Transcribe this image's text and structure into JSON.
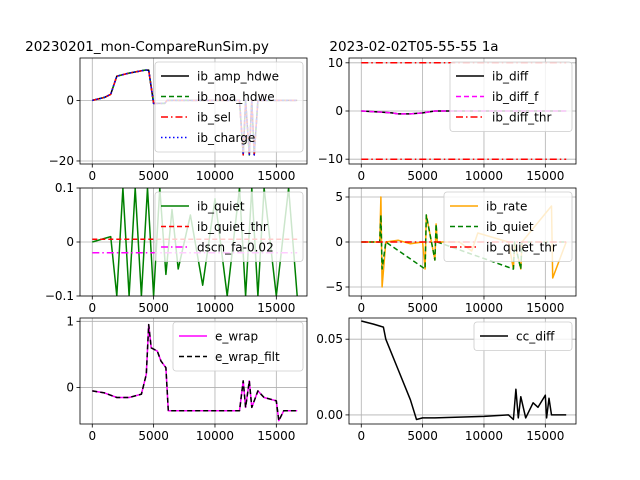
{
  "titles": {
    "left": "20230201_mon-CompareRunSim.py",
    "right": "2023-02-02T05-55-55 1a"
  },
  "chart_data": [
    {
      "type": "line",
      "panel": "top-left",
      "xlim": [
        -1000,
        17500
      ],
      "ylim": [
        -21,
        14
      ],
      "xticks": [
        0,
        5000,
        10000,
        15000
      ],
      "yticks": [
        -20,
        0
      ],
      "grid": true,
      "legend_placement": "upper-right",
      "series": [
        {
          "name": "ib_amp_hdwe",
          "color": "#000000",
          "style": "solid",
          "x": [
            0,
            1000,
            1500,
            2000,
            3000,
            4300,
            4600,
            5000,
            5900,
            6100,
            6200,
            7000,
            9000,
            11000,
            12000,
            12300,
            12500,
            12800,
            13000,
            13200,
            13500,
            15000,
            16700
          ],
          "y": [
            0,
            1,
            2,
            8,
            9,
            10,
            10,
            -1,
            -1,
            0,
            0,
            0,
            0,
            0,
            0,
            -18,
            0,
            -18,
            0,
            -18,
            0,
            0,
            0
          ]
        },
        {
          "name": "ib_noa_hdwe",
          "color": "#008000",
          "style": "dashed",
          "x": [
            0,
            1000,
            1500,
            2000,
            3000,
            4300,
            4600,
            5000,
            5900,
            6100,
            6200,
            7000,
            9000,
            11000,
            12000,
            12300,
            12500,
            12800,
            13000,
            13200,
            13500,
            15000,
            16700
          ],
          "y": [
            0,
            1,
            2,
            8,
            9,
            10,
            10,
            -1,
            -1,
            0,
            0,
            0,
            0,
            0,
            0,
            -18,
            0,
            -18,
            0,
            -18,
            0,
            0,
            0
          ]
        },
        {
          "name": "ib_sel",
          "color": "#ff0000",
          "style": "dashdot",
          "x": [
            0,
            1000,
            1500,
            2000,
            3000,
            4300,
            4600,
            5000,
            5900,
            6100,
            6200,
            7000,
            9000,
            11000,
            12000,
            12300,
            12500,
            12800,
            13000,
            13200,
            13500,
            15000,
            16700
          ],
          "y": [
            0,
            1,
            2,
            8,
            9,
            10,
            10,
            -1,
            -1,
            0,
            0,
            0,
            0,
            0,
            0,
            -18,
            0,
            -18,
            0,
            -18,
            0,
            0,
            0
          ]
        },
        {
          "name": "ib_charge",
          "color": "#0000ff",
          "style": "dotted",
          "x": [
            0,
            1000,
            1500,
            2000,
            3000,
            4300,
            4600,
            5000,
            5900,
            6100,
            6200,
            7000,
            9000,
            11000,
            12000,
            12300,
            12500,
            12800,
            13000,
            13200,
            13500,
            15000,
            16700
          ],
          "y": [
            0,
            1,
            2,
            8,
            9,
            10,
            10,
            -1,
            -1,
            0,
            0,
            0,
            0,
            0,
            0,
            -18,
            0,
            -18,
            0,
            -18,
            0,
            0,
            0
          ]
        }
      ]
    },
    {
      "type": "line",
      "panel": "top-right",
      "xlim": [
        -1000,
        17500
      ],
      "ylim": [
        -11,
        11
      ],
      "xticks": [
        0,
        5000,
        10000,
        15000
      ],
      "yticks": [
        -10,
        0,
        10
      ],
      "grid": true,
      "legend_placement": "upper-right",
      "series": [
        {
          "name": "ib_diff",
          "color": "#000000",
          "style": "solid",
          "x": [
            0,
            1500,
            2500,
            3000,
            4000,
            5000,
            6000,
            8000,
            12000,
            16700
          ],
          "y": [
            0,
            -0.2,
            -0.4,
            -0.6,
            -0.6,
            -0.4,
            0,
            0,
            0,
            0
          ]
        },
        {
          "name": "ib_diff_f",
          "color": "#ff00ff",
          "style": "dashed",
          "x": [
            0,
            1500,
            2500,
            3000,
            4000,
            5000,
            6000,
            8000,
            12000,
            16700
          ],
          "y": [
            0,
            -0.2,
            -0.4,
            -0.6,
            -0.6,
            -0.4,
            0,
            0,
            0,
            0
          ]
        },
        {
          "name": "ib_diff_thr",
          "color": "#ff0000",
          "style": "dashdot",
          "x": [
            0,
            16700
          ],
          "y": [
            10,
            10
          ]
        },
        {
          "name": "",
          "color": "#ff0000",
          "style": "dashdot",
          "x": [
            0,
            16700
          ],
          "y": [
            -10,
            -10
          ]
        }
      ]
    },
    {
      "type": "line",
      "panel": "middle-left",
      "xlim": [
        -1000,
        17500
      ],
      "ylim": [
        -0.1,
        0.1
      ],
      "xticks": [
        0,
        5000,
        10000,
        15000
      ],
      "yticks": [
        -0.1,
        0.0,
        0.1
      ],
      "grid": true,
      "legend_placement": "upper-right",
      "series": [
        {
          "name": "ib_quiet",
          "color": "#008000",
          "style": "solid",
          "x": [
            0,
            1500,
            2000,
            2500,
            3000,
            3500,
            4000,
            4500,
            5000,
            5500,
            6000,
            6500,
            7000,
            8000,
            9000,
            10000,
            11000,
            12000,
            12500,
            13000,
            13500,
            14000,
            15000,
            16000,
            16700
          ],
          "y": [
            0,
            0.01,
            -0.1,
            0.1,
            -0.1,
            0.1,
            -0.1,
            0.1,
            -0.1,
            0.1,
            -0.06,
            0.06,
            -0.05,
            0.05,
            -0.08,
            0.08,
            -0.1,
            0.1,
            -0.1,
            0.1,
            -0.1,
            0.1,
            -0.1,
            0.1,
            -0.1
          ]
        },
        {
          "name": "ib_quiet_thr",
          "color": "#ff0000",
          "style": "dashed",
          "x": [
            0,
            16700
          ],
          "y": [
            0.005,
            0.005
          ]
        },
        {
          "name": "dscn_fa-0.02",
          "color": "#ff00ff",
          "style": "dashdot",
          "x": [
            0,
            16700
          ],
          "y": [
            -0.02,
            -0.02
          ]
        }
      ]
    },
    {
      "type": "line",
      "panel": "middle-right",
      "xlim": [
        -1000,
        17500
      ],
      "ylim": [
        -6,
        6
      ],
      "xticks": [
        0,
        5000,
        10000,
        15000
      ],
      "yticks": [
        -5,
        0,
        5
      ],
      "grid": true,
      "legend_placement": "upper-right",
      "series": [
        {
          "name": "ib_rate",
          "color": "#ffa500",
          "style": "solid",
          "x": [
            0,
            1500,
            1600,
            1700,
            2000,
            3000,
            4000,
            5000,
            5200,
            5300,
            6000,
            6100,
            6200,
            7000,
            8000,
            9000,
            9500,
            12000,
            12400,
            12500,
            13000,
            13100,
            15500,
            15600,
            16700
          ],
          "y": [
            0,
            0,
            5,
            -5,
            0,
            0.2,
            -0.2,
            0,
            -3,
            3,
            -2,
            2,
            0,
            0,
            0,
            -1,
            1,
            0,
            -3,
            0,
            -3,
            0,
            4,
            -4,
            0
          ]
        },
        {
          "name": "ib_quiet",
          "color": "#008000",
          "style": "dashed",
          "x": [
            0,
            1500,
            1600,
            1700,
            2000,
            5200,
            5300,
            6000,
            6100,
            6200,
            12400,
            12500,
            13000,
            13100,
            16700
          ],
          "y": [
            0,
            0,
            3,
            -3,
            0,
            -3,
            3,
            -2,
            2,
            0,
            -3,
            0,
            -3,
            0,
            0
          ]
        },
        {
          "name": "ib_quiet_thr",
          "color": "#ff0000",
          "style": "dashdot",
          "x": [
            0,
            16700
          ],
          "y": [
            0,
            0
          ]
        }
      ]
    },
    {
      "type": "line",
      "panel": "bottom-left",
      "xlim": [
        -1000,
        17500
      ],
      "ylim": [
        -0.55,
        1.05
      ],
      "xticks": [
        0,
        5000,
        10000,
        15000
      ],
      "yticks": [
        0,
        1
      ],
      "grid": true,
      "legend_placement": "upper-right",
      "series": [
        {
          "name": "e_wrap",
          "color": "#ff00ff",
          "style": "solid",
          "x": [
            0,
            1000,
            2000,
            3000,
            4000,
            4400,
            4600,
            4800,
            5300,
            5600,
            6000,
            6200,
            7000,
            9000,
            11000,
            12000,
            12300,
            12500,
            12800,
            13000,
            13500,
            14000,
            15000,
            15200,
            15600,
            16700
          ],
          "y": [
            -0.05,
            -0.08,
            -0.15,
            -0.15,
            -0.1,
            0.2,
            0.95,
            0.6,
            0.55,
            0.4,
            0.3,
            -0.35,
            -0.35,
            -0.35,
            -0.35,
            -0.35,
            0.1,
            -0.3,
            0.1,
            -0.3,
            -0.05,
            -0.15,
            -0.2,
            -0.5,
            -0.35,
            -0.35
          ]
        },
        {
          "name": "e_wrap_filt",
          "color": "#000000",
          "style": "dashed",
          "x": [
            0,
            1000,
            2000,
            3000,
            4000,
            4400,
            4600,
            4800,
            5300,
            5600,
            6000,
            6200,
            7000,
            9000,
            11000,
            12000,
            12300,
            12500,
            12800,
            13000,
            13500,
            14000,
            15000,
            15200,
            15600,
            16700
          ],
          "y": [
            -0.05,
            -0.08,
            -0.15,
            -0.15,
            -0.1,
            0.2,
            0.95,
            0.6,
            0.55,
            0.4,
            0.3,
            -0.35,
            -0.35,
            -0.35,
            -0.35,
            -0.35,
            0.1,
            -0.3,
            0.1,
            -0.3,
            -0.05,
            -0.15,
            -0.2,
            -0.5,
            -0.35,
            -0.35
          ]
        }
      ]
    },
    {
      "type": "line",
      "panel": "bottom-right",
      "xlim": [
        -1000,
        17500
      ],
      "ylim": [
        -0.006,
        0.064
      ],
      "xticks": [
        0,
        5000,
        10000,
        15000
      ],
      "yticks": [
        0.0,
        0.05
      ],
      "ytick_labels": [
        "0.00",
        "0.05"
      ],
      "grid": true,
      "legend_placement": "upper-right",
      "series": [
        {
          "name": "cc_diff",
          "color": "#000000",
          "style": "solid",
          "x": [
            0,
            1000,
            1800,
            2000,
            3000,
            4000,
            4500,
            5000,
            6000,
            10000,
            12000,
            12400,
            12600,
            12800,
            13000,
            13400,
            14000,
            14400,
            15000,
            15100,
            15300,
            15500,
            16700
          ],
          "y": [
            0.062,
            0.06,
            0.058,
            0.05,
            0.03,
            0.01,
            -0.003,
            -0.002,
            -0.002,
            -0.001,
            0.0,
            -0.003,
            0.017,
            -0.002,
            0.012,
            -0.002,
            0.008,
            0.005,
            0.013,
            -0.002,
            0.011,
            0.0,
            0.0
          ]
        }
      ]
    }
  ]
}
